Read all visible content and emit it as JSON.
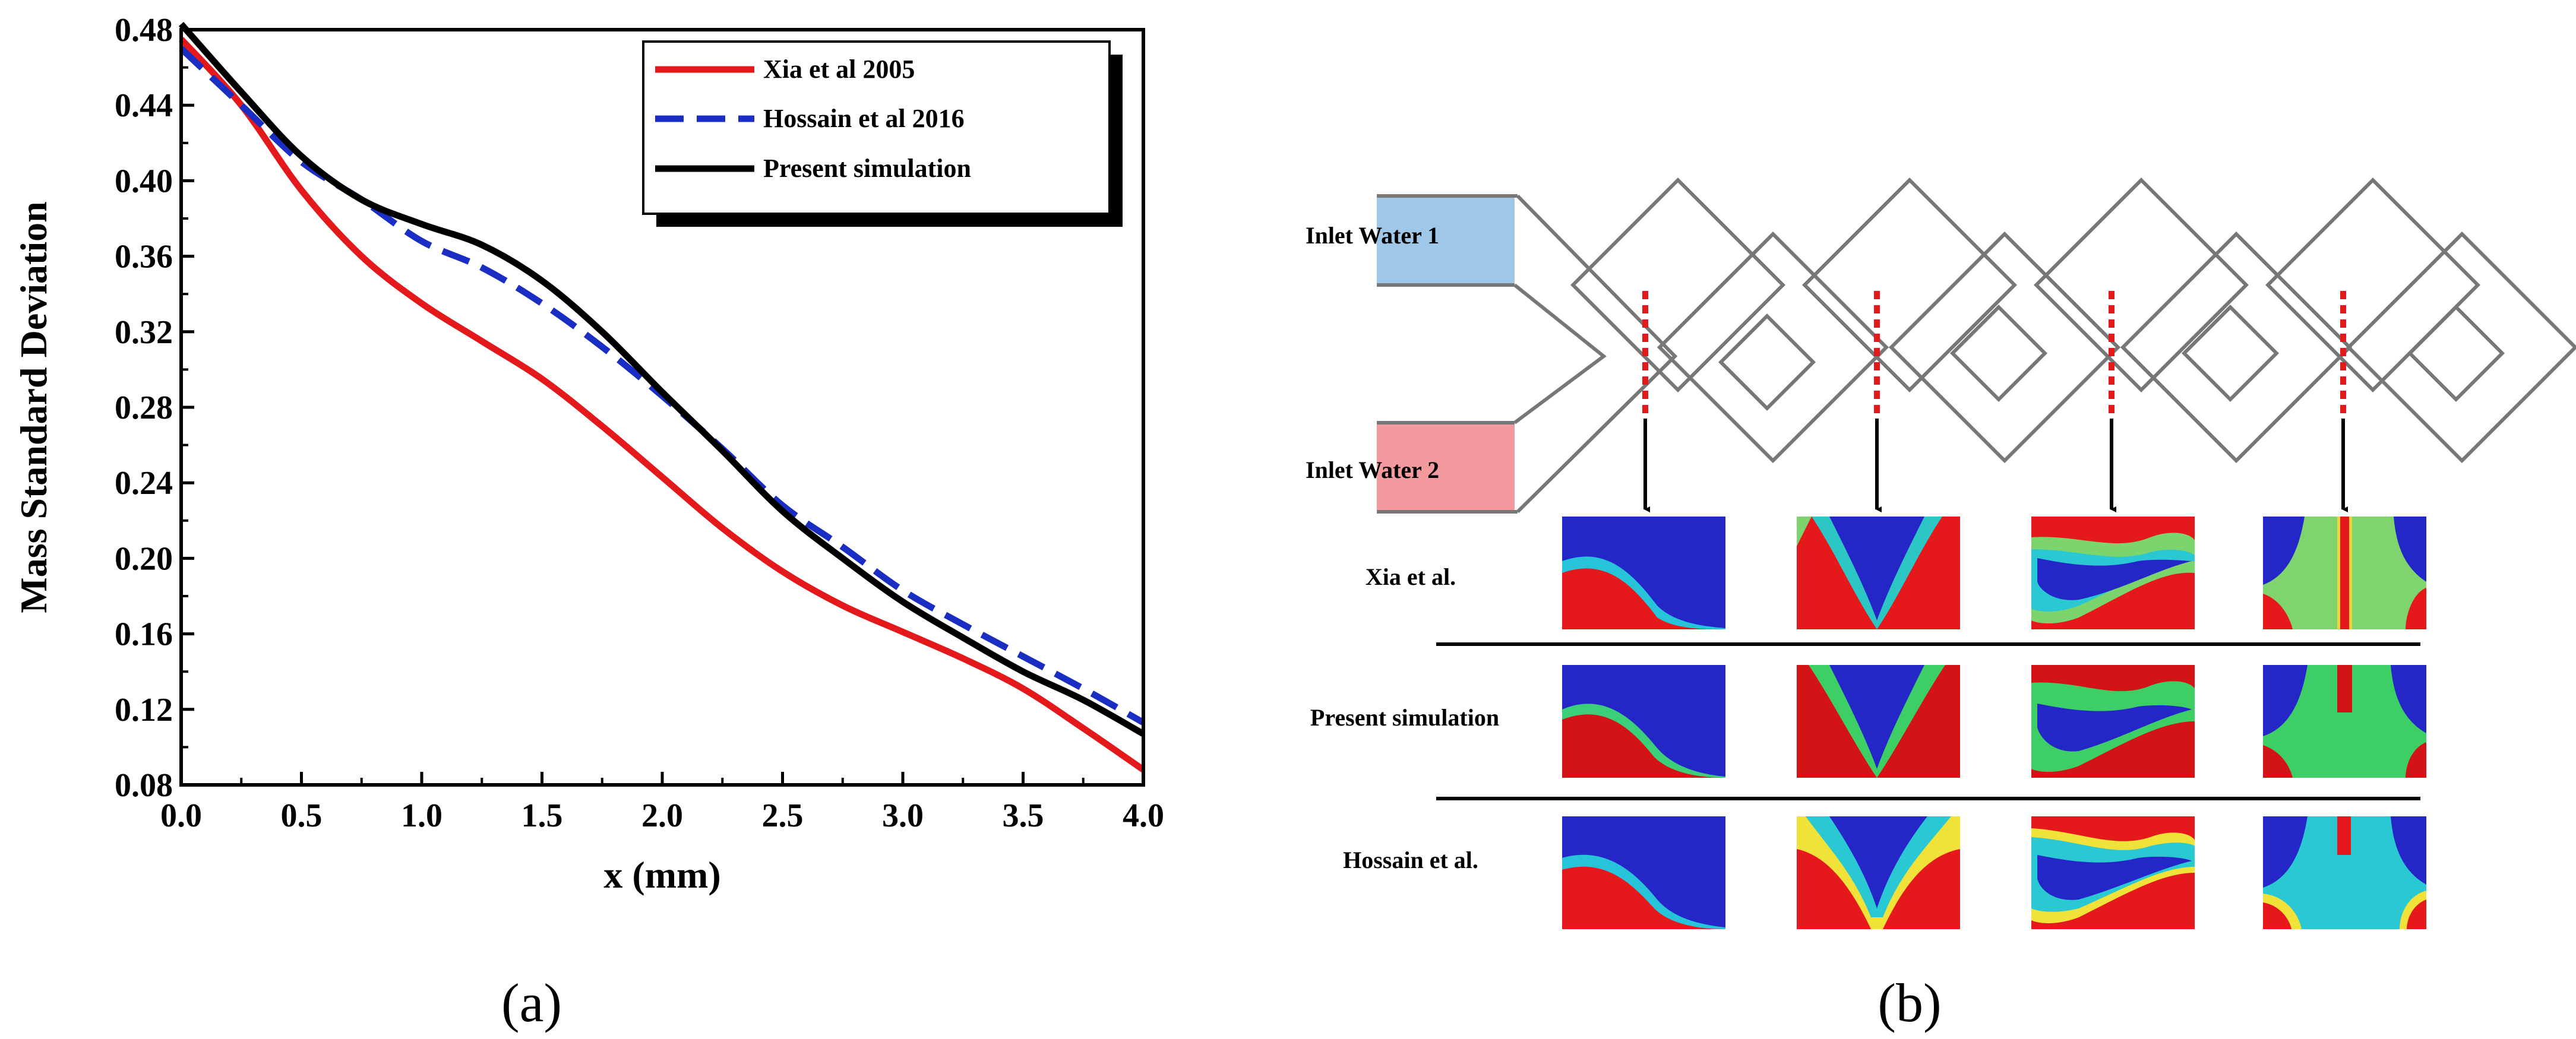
{
  "chart_data": {
    "type": "line",
    "xlabel": "x (mm)",
    "ylabel": "Mass Standard Deviation",
    "xlim": [
      0.0,
      4.0
    ],
    "ylim": [
      0.08,
      0.48
    ],
    "xticks": [
      "0.0",
      "0.5",
      "1.0",
      "1.5",
      "2.0",
      "2.5",
      "3.0",
      "3.5",
      "4.0"
    ],
    "yticks": [
      "0.08",
      "0.12",
      "0.16",
      "0.20",
      "0.24",
      "0.28",
      "0.32",
      "0.36",
      "0.40",
      "0.44",
      "0.48"
    ],
    "legend_position": "top-right",
    "series": [
      {
        "name": "Xia et al 2005",
        "color": "#e3191c",
        "style": "solid",
        "x": [
          0.0,
          0.25,
          0.5,
          0.75,
          1.0,
          1.25,
          1.5,
          1.75,
          2.0,
          2.25,
          2.5,
          2.75,
          3.0,
          3.25,
          3.5,
          3.75,
          4.0
        ],
        "y": [
          0.475,
          0.44,
          0.395,
          0.36,
          0.335,
          0.315,
          0.295,
          0.27,
          0.243,
          0.216,
          0.193,
          0.175,
          0.161,
          0.147,
          0.131,
          0.11,
          0.088
        ]
      },
      {
        "name": "Hossain et al 2016",
        "color": "#1a2ec4",
        "style": "dashed",
        "x": [
          0.0,
          0.25,
          0.5,
          0.75,
          1.0,
          1.25,
          1.5,
          1.75,
          2.0,
          2.25,
          2.5,
          2.75,
          3.0,
          3.25,
          3.5,
          3.75,
          4.0
        ],
        "y": [
          0.47,
          0.44,
          0.41,
          0.39,
          0.368,
          0.354,
          0.335,
          0.312,
          0.286,
          0.258,
          0.228,
          0.206,
          0.183,
          0.165,
          0.148,
          0.131,
          0.113
        ]
      },
      {
        "name": "Present simulation",
        "color": "#000000",
        "style": "solid",
        "x": [
          0.0,
          0.25,
          0.5,
          0.75,
          1.0,
          1.25,
          1.5,
          1.75,
          2.0,
          2.25,
          2.5,
          2.75,
          3.0,
          3.25,
          3.5,
          3.75,
          4.0
        ],
        "y": [
          0.483,
          0.447,
          0.413,
          0.39,
          0.377,
          0.366,
          0.347,
          0.32,
          0.288,
          0.257,
          0.225,
          0.2,
          0.177,
          0.158,
          0.14,
          0.125,
          0.107
        ]
      }
    ]
  },
  "panel_labels": {
    "a": "(a)",
    "b": "(b)"
  },
  "diagram": {
    "inlets": [
      {
        "label": "Inlet Water 1",
        "color": "#9fc8e8"
      },
      {
        "label": "Inlet Water 2",
        "color": "#f29a9e"
      }
    ],
    "rows": [
      "Xia et al.",
      "Present simulation",
      "Hossain et al."
    ],
    "section_count": 4
  }
}
